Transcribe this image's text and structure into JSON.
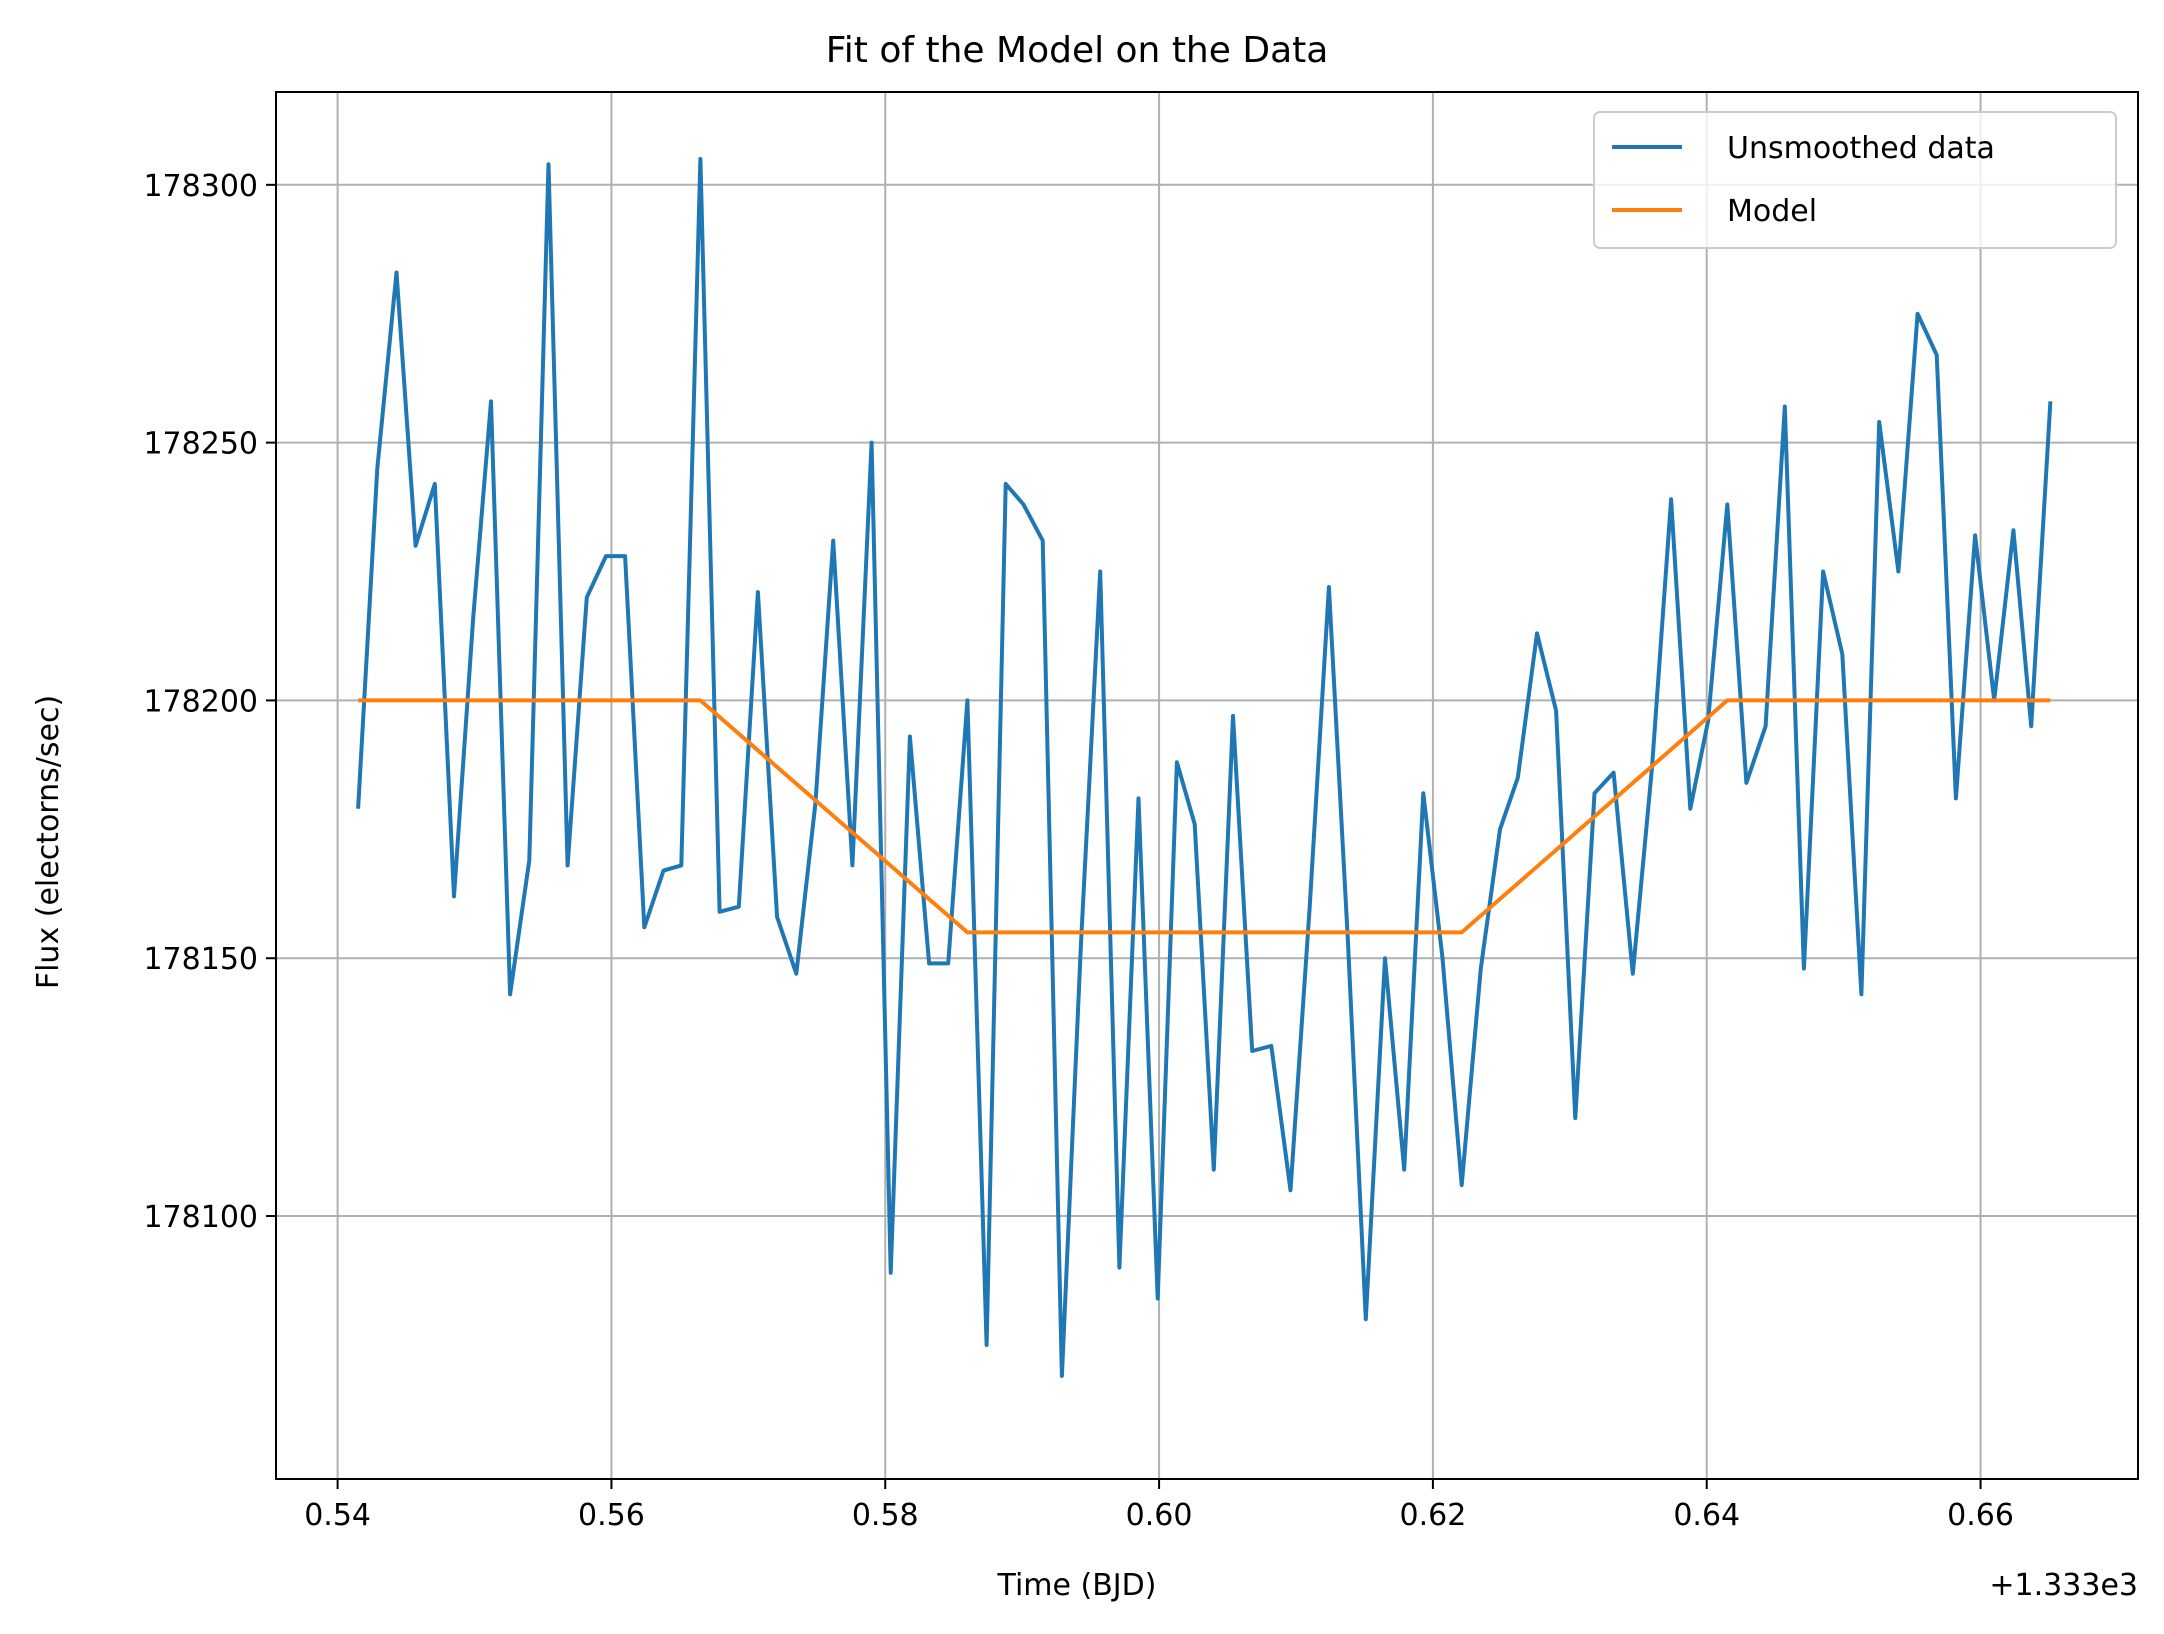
{
  "chart_data": {
    "type": "line",
    "title": "Fit of the Model on the Data",
    "xlabel": "Time (BJD)",
    "ylabel": "Flux (electorns/sec)",
    "x_offset_label": "+1.333e3",
    "xlim": [
      0.5355,
      0.6715
    ],
    "ylim": [
      178049,
      178318
    ],
    "x_ticks": [
      0.54,
      0.56,
      0.58,
      0.6,
      0.62,
      0.64,
      0.66
    ],
    "x_tick_labels": [
      "0.54",
      "0.56",
      "0.58",
      "0.60",
      "0.62",
      "0.64",
      "0.66"
    ],
    "y_ticks": [
      178100,
      178150,
      178200,
      178250,
      178300
    ],
    "y_tick_labels": [
      "178100",
      "178150",
      "178200",
      "178250",
      "178300"
    ],
    "grid": true,
    "legend_position": "top-right",
    "series": [
      {
        "name": "Unsmoothed data",
        "color": "#1f77b4",
        "x": [
          0.5415,
          0.5429,
          0.5443,
          0.5457,
          0.5471,
          0.5485,
          0.5499,
          0.5512,
          0.5526,
          0.554,
          0.5554,
          0.5568,
          0.5582,
          0.5596,
          0.561,
          0.5624,
          0.5638,
          0.5651,
          0.5665,
          0.5679,
          0.5693,
          0.5707,
          0.5721,
          0.5735,
          0.5749,
          0.5762,
          0.5776,
          0.579,
          0.5804,
          0.5818,
          0.5832,
          0.5846,
          0.586,
          0.5874,
          0.5888,
          0.5901,
          0.5915,
          0.5929,
          0.5943,
          0.5957,
          0.5971,
          0.5985,
          0.5999,
          0.6013,
          0.6026,
          0.604,
          0.6054,
          0.6068,
          0.6082,
          0.6096,
          0.611,
          0.6124,
          0.6138,
          0.6151,
          0.6165,
          0.6179,
          0.6193,
          0.6207,
          0.6221,
          0.6235,
          0.6249,
          0.6262,
          0.6276,
          0.629,
          0.6304,
          0.6318,
          0.6332,
          0.6346,
          0.636,
          0.6374,
          0.6388,
          0.6401,
          0.6415,
          0.6429,
          0.6443,
          0.6457,
          0.6471,
          0.6485,
          0.6499,
          0.6513,
          0.6526,
          0.654,
          0.6554,
          0.6568,
          0.6582,
          0.6596,
          0.661,
          0.6624,
          0.6637,
          0.6651
        ],
        "y": [
          178179,
          178245,
          178283,
          178230,
          178242,
          178162,
          178216,
          178258,
          178143,
          178169,
          178304,
          178168,
          178220,
          178228,
          178228,
          178156,
          178167,
          178168,
          178305,
          178159,
          178160,
          178221,
          178158,
          178147,
          178180,
          178231,
          178168,
          178250,
          178089,
          178193,
          178149,
          178149,
          178200,
          178075,
          178242,
          178238,
          178231,
          178069,
          178153,
          178225,
          178090,
          178181,
          178084,
          178188,
          178176,
          178109,
          178197,
          178132,
          178133,
          178105,
          178160,
          178222,
          178153,
          178080,
          178150,
          178109,
          178182,
          178150,
          178106,
          178148,
          178175,
          178185,
          178213,
          178198,
          178119,
          178182,
          178186,
          178147,
          178187,
          178239,
          178179,
          178196,
          178238,
          178184,
          178195,
          178257,
          178148,
          178225,
          178209,
          178143,
          178254,
          178225,
          178275,
          178267,
          178181,
          178232,
          178200,
          178233,
          178195,
          178258
        ]
      },
      {
        "name": "Model",
        "color": "#ff7f0e",
        "x": [
          0.5415,
          0.5665,
          0.586,
          0.6221,
          0.6415,
          0.6651
        ],
        "y": [
          178200,
          178200,
          178155,
          178155,
          178200,
          178200
        ]
      }
    ]
  }
}
